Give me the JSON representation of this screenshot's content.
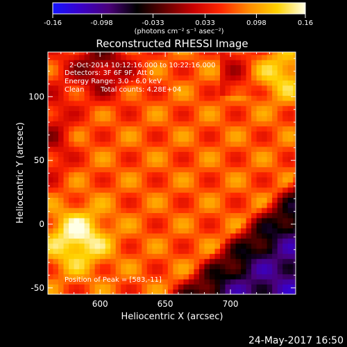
{
  "chart_data": {
    "type": "heatmap",
    "title": "Reconstructed RHESSI Image",
    "xlabel": "Heliocentric X (arcsec)",
    "ylabel": "Heliocentric Y (arcsec)",
    "xlim": [
      560,
      750
    ],
    "ylim": [
      -55,
      135
    ],
    "xticks": [
      600,
      650,
      700
    ],
    "yticks": [
      -50,
      0,
      50,
      100
    ],
    "colorbar": {
      "min": -0.16,
      "max": 0.16,
      "ticks": [
        "-0.16",
        "-0.098",
        "-0.033",
        "0.033",
        "0.098",
        "0.16"
      ],
      "unit_label": "(photons cm⁻² s⁻¹ asec⁻²)",
      "colors": [
        "#1414ff",
        "#3a00c8",
        "#4a007a",
        "#000000",
        "#640000",
        "#c80000",
        "#ff2800",
        "#ff8c00",
        "#ffd200",
        "#ffffe6"
      ]
    },
    "annotations": [
      "2-Oct-2014 10:12:16.000 to 10:22:16.000",
      "Detectors: 3F 6F 9F, Att 0",
      "Energy Range: 3.0 - 6.0 keV",
      "Clean",
      "Total counts: 4.28E+04"
    ],
    "peak_label": "Position of Peak = [583,-11]",
    "peak": [
      583,
      -11
    ],
    "peak_value": 0.16
  },
  "footer": {
    "timestamp": "24-May-2017 16:50"
  }
}
